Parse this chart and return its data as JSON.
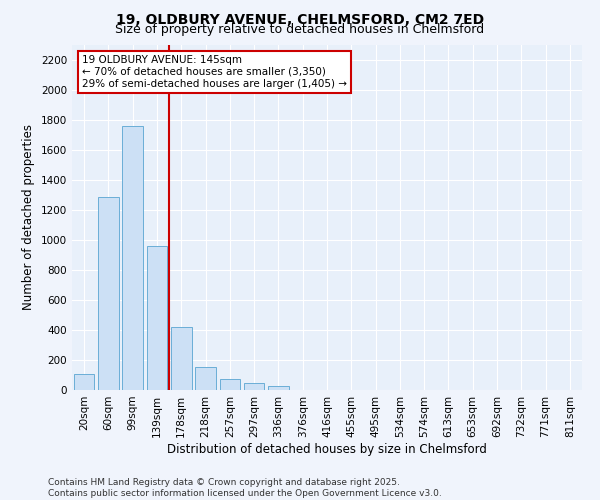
{
  "title_line1": "19, OLDBURY AVENUE, CHELMSFORD, CM2 7ED",
  "title_line2": "Size of property relative to detached houses in Chelmsford",
  "xlabel": "Distribution of detached houses by size in Chelmsford",
  "ylabel": "Number of detached properties",
  "bar_color": "#cce0f5",
  "bar_edge_color": "#6aaed6",
  "background_color": "#e8f0fa",
  "grid_color": "#ffffff",
  "annotation_text": "19 OLDBURY AVENUE: 145sqm\n← 70% of detached houses are smaller (3,350)\n29% of semi-detached houses are larger (1,405) →",
  "annotation_box_color": "#ffffff",
  "annotation_box_edge_color": "#cc0000",
  "vline_color": "#cc0000",
  "vline_x_index": 3,
  "categories": [
    "20sqm",
    "60sqm",
    "99sqm",
    "139sqm",
    "178sqm",
    "218sqm",
    "257sqm",
    "297sqm",
    "336sqm",
    "376sqm",
    "416sqm",
    "455sqm",
    "495sqm",
    "534sqm",
    "574sqm",
    "613sqm",
    "653sqm",
    "692sqm",
    "732sqm",
    "771sqm",
    "811sqm"
  ],
  "values": [
    110,
    1290,
    1760,
    960,
    420,
    155,
    75,
    45,
    25,
    0,
    0,
    0,
    0,
    0,
    0,
    0,
    0,
    0,
    0,
    0,
    0
  ],
  "ylim": [
    0,
    2300
  ],
  "yticks": [
    0,
    200,
    400,
    600,
    800,
    1000,
    1200,
    1400,
    1600,
    1800,
    2000,
    2200
  ],
  "footer_line1": "Contains HM Land Registry data © Crown copyright and database right 2025.",
  "footer_line2": "Contains public sector information licensed under the Open Government Licence v3.0.",
  "title_fontsize": 10,
  "subtitle_fontsize": 9,
  "axis_label_fontsize": 8.5,
  "tick_fontsize": 7.5,
  "annotation_fontsize": 7.5,
  "footer_fontsize": 6.5
}
